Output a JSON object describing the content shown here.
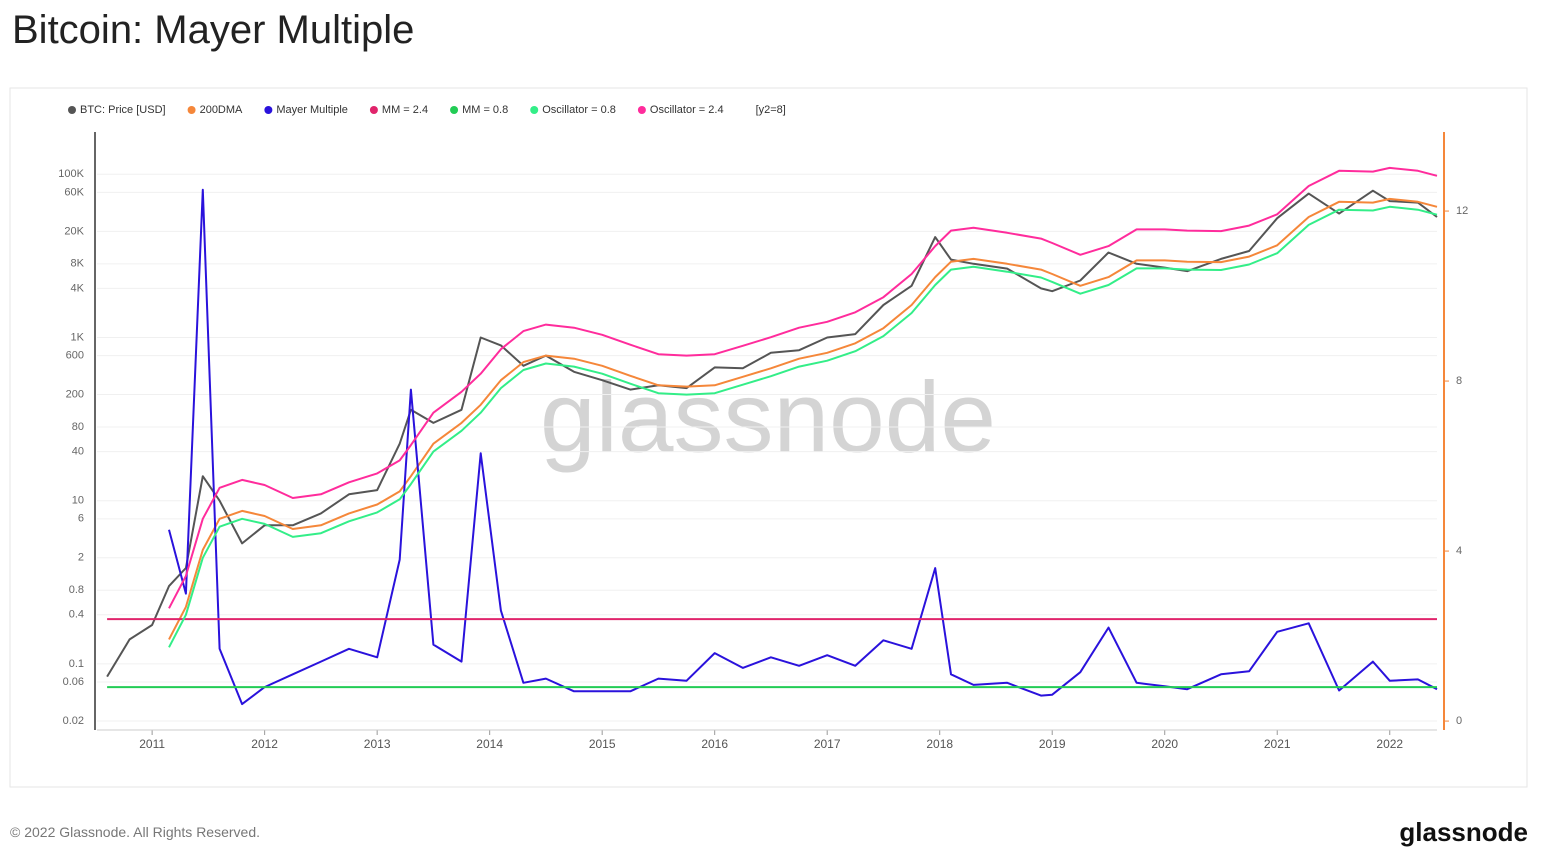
{
  "chart_data": {
    "type": "line",
    "title": "Bitcoin: Mayer Multiple",
    "x": [
      2010.6,
      2010.8,
      2011.0,
      2011.15,
      2011.3,
      2011.45,
      2011.6,
      2011.8,
      2012.0,
      2012.25,
      2012.5,
      2012.75,
      2013.0,
      2013.2,
      2013.3,
      2013.5,
      2013.75,
      2013.92,
      2014.1,
      2014.3,
      2014.5,
      2014.75,
      2015.0,
      2015.25,
      2015.5,
      2015.75,
      2016.0,
      2016.25,
      2016.5,
      2016.75,
      2017.0,
      2017.25,
      2017.5,
      2017.75,
      2017.96,
      2018.1,
      2018.3,
      2018.6,
      2018.9,
      2019.0,
      2019.25,
      2019.5,
      2019.75,
      2020.0,
      2020.2,
      2020.5,
      2020.75,
      2021.0,
      2021.28,
      2021.55,
      2021.85,
      2022.0,
      2022.25,
      2022.42
    ],
    "series": [
      {
        "name": "BTC: Price [USD]",
        "color": "#555555",
        "values": [
          0.07,
          0.2,
          0.3,
          0.9,
          1.5,
          20,
          10,
          3,
          5,
          5,
          7,
          12,
          13.5,
          50,
          130,
          90,
          130,
          1000,
          800,
          450,
          600,
          380,
          300,
          230,
          260,
          240,
          430,
          420,
          650,
          700,
          1000,
          1100,
          2500,
          4300,
          17000,
          9000,
          8000,
          7000,
          4000,
          3700,
          5000,
          11000,
          8000,
          7200,
          6500,
          9200,
          11500,
          29000,
          58000,
          33000,
          63000,
          47000,
          45000,
          30000
        ]
      },
      {
        "name": "200DMA",
        "color": "#f5873a",
        "values": [
          null,
          null,
          null,
          0.2,
          0.5,
          2.5,
          6,
          7.5,
          6.5,
          4.5,
          5,
          7,
          9,
          13,
          20,
          50,
          90,
          150,
          300,
          500,
          600,
          550,
          450,
          340,
          260,
          250,
          260,
          330,
          420,
          550,
          650,
          850,
          1300,
          2500,
          5500,
          8500,
          9200,
          8000,
          6800,
          6000,
          4300,
          5500,
          8800,
          8800,
          8500,
          8400,
          9800,
          13500,
          30000,
          46000,
          45000,
          50000,
          46000,
          40000
        ]
      },
      {
        "name": "Mayer Multiple",
        "color": "#2a12dc",
        "axis": "y2",
        "values": [
          null,
          null,
          null,
          4.5,
          3,
          12.5,
          1.7,
          0.4,
          0.8,
          1.1,
          1.4,
          1.7,
          1.5,
          3.8,
          7.8,
          1.8,
          1.4,
          6.3,
          2.6,
          0.9,
          1.0,
          0.7,
          0.7,
          0.7,
          1.0,
          0.95,
          1.6,
          1.25,
          1.5,
          1.3,
          1.55,
          1.3,
          1.9,
          1.7,
          3.6,
          1.1,
          0.85,
          0.9,
          0.6,
          0.62,
          1.15,
          2.2,
          0.9,
          0.82,
          0.75,
          1.1,
          1.17,
          2.1,
          2.3,
          0.72,
          1.4,
          0.95,
          0.98,
          0.75
        ]
      },
      {
        "name": "MM = 2.4",
        "color": "#e0246b",
        "axis": "y2",
        "x": [
          2010.6,
          2022.42
        ],
        "values": [
          2.4,
          2.4
        ]
      },
      {
        "name": "MM = 0.8",
        "color": "#22cc55",
        "axis": "y2",
        "x": [
          2010.6,
          2022.42
        ],
        "values": [
          0.8,
          0.8
        ]
      },
      {
        "name": "Oscillator = 0.8",
        "color": "#33ee88",
        "values": [
          null,
          null,
          null,
          0.16,
          0.4,
          2,
          4.8,
          6,
          5.2,
          3.6,
          4,
          5.6,
          7.2,
          10.4,
          16,
          40,
          72,
          120,
          240,
          400,
          480,
          440,
          360,
          272,
          208,
          200,
          208,
          264,
          336,
          440,
          520,
          680,
          1040,
          2000,
          4400,
          6800,
          7360,
          6400,
          5440,
          4800,
          3440,
          4400,
          7040,
          7040,
          6800,
          6720,
          7840,
          10800,
          24000,
          36800,
          36000,
          40000,
          36800,
          32000
        ]
      },
      {
        "name": "Oscillator = 2.4",
        "color": "#ff2c9c",
        "values": [
          null,
          null,
          null,
          0.48,
          1.2,
          6,
          14.4,
          18,
          15.6,
          10.8,
          12,
          16.8,
          21.6,
          31.2,
          48,
          120,
          216,
          360,
          720,
          1200,
          1440,
          1320,
          1080,
          816,
          624,
          600,
          624,
          792,
          1008,
          1320,
          1560,
          2040,
          3120,
          6000,
          13200,
          20400,
          22080,
          19200,
          16320,
          14400,
          10320,
          13200,
          21120,
          21120,
          20400,
          20160,
          23520,
          32400,
          72000,
          110400,
          108000,
          120000,
          110400,
          96000
        ]
      }
    ],
    "legend_note": "[y2=8]",
    "xlim": [
      2010.51,
      2022.42
    ],
    "xticks": [
      2011,
      2012,
      2013,
      2014,
      2015,
      2016,
      2017,
      2018,
      2019,
      2020,
      2021,
      2022
    ],
    "ylog": true,
    "ylim": [
      0.0155,
      330000
    ],
    "yticks": [
      0.02,
      0.06,
      0.1,
      0.4,
      0.8,
      2,
      6,
      10,
      40,
      80,
      200,
      600,
      {
        "value": 1000,
        "label": "1K"
      },
      {
        "value": 4000,
        "label": "4K"
      },
      {
        "value": 8000,
        "label": "8K"
      },
      {
        "value": 20000,
        "label": "20K"
      },
      {
        "value": 60000,
        "label": "60K"
      },
      {
        "value": 100000,
        "label": "100K"
      }
    ],
    "y2lim": [
      -0.21,
      13.86
    ],
    "y2ticks": [
      0,
      4,
      8,
      12
    ],
    "y2_color": "#f5873a",
    "grid": true,
    "legend": "top",
    "watermark": "glassnode",
    "footer": "© 2022 Glassnode. All Rights Reserved.",
    "brand": "glassnode"
  }
}
